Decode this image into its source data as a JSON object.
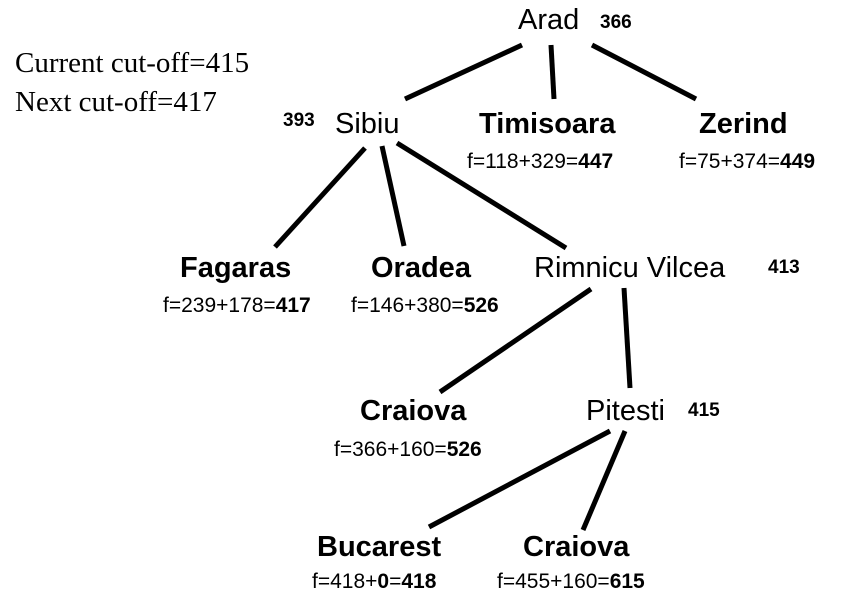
{
  "cutoffs": {
    "current": "Current cut-off=415",
    "next": "Next cut-off=417"
  },
  "nodes": {
    "arad": {
      "name": "Arad",
      "value": "366"
    },
    "sibiu": {
      "name": "Sibiu",
      "value": "393"
    },
    "timisoara": {
      "name": "Timisoara",
      "formula_prefix": "f=118+329=",
      "formula_total": "447"
    },
    "zerind": {
      "name": "Zerind",
      "formula_prefix": "f=75+374=",
      "formula_total": "449"
    },
    "fagaras": {
      "name": "Fagaras",
      "formula_prefix": "f=239+178=",
      "formula_total": "417"
    },
    "oradea": {
      "name": "Oradea",
      "formula_prefix": "f=146+380=",
      "formula_total": "526"
    },
    "rimnicu": {
      "name": "Rimnicu Vilcea",
      "value": "413"
    },
    "craiova1": {
      "name": "Craiova",
      "formula_prefix": "f=366+160=",
      "formula_total": "526"
    },
    "pitesti": {
      "name": "Pitesti",
      "value": "415"
    },
    "bucarest": {
      "name": "Bucarest",
      "formula_a": "f=418+",
      "formula_b": "0",
      "formula_c": "=",
      "formula_total": "418"
    },
    "craiova2": {
      "name": "Craiova",
      "formula_prefix": "f=455+160=",
      "formula_total": "615"
    }
  }
}
